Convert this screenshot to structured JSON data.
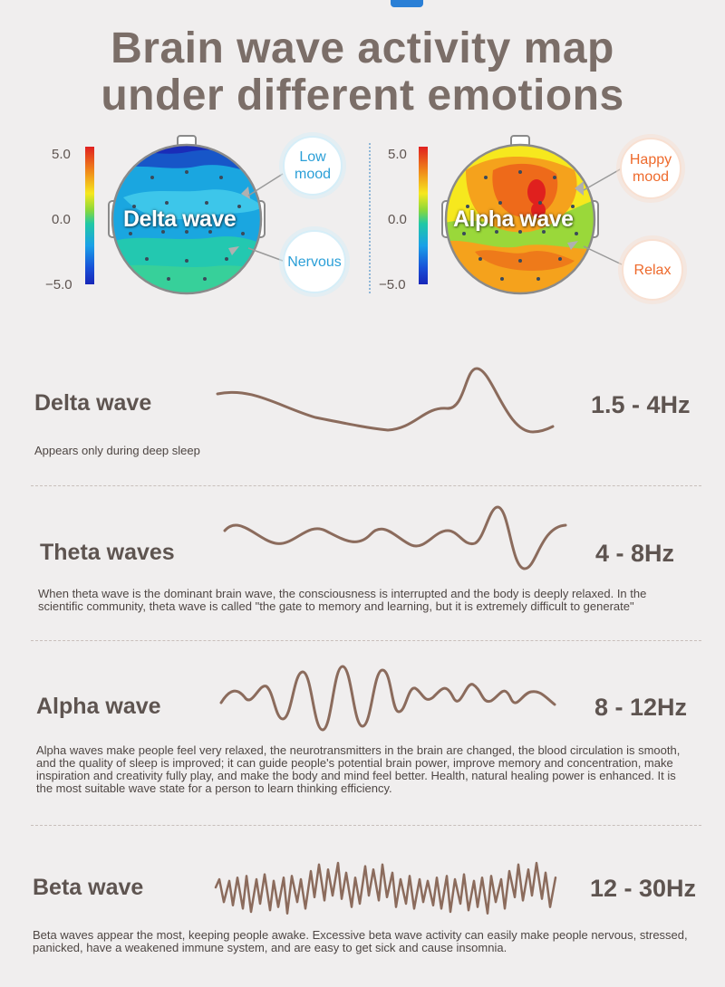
{
  "title": {
    "line1": "Brain wave activity map",
    "line2": "under different emotions"
  },
  "maps": [
    {
      "name": "Delta wave",
      "scale": [
        "5.0",
        "0.0",
        "−5.0"
      ],
      "labels": [
        "Low\nmood",
        "Nervous"
      ]
    },
    {
      "name": "Alpha wave",
      "scale": [
        "5.0",
        "0.0",
        "−5.0"
      ],
      "labels": [
        "Happy\nmood",
        "Relax"
      ]
    }
  ],
  "waves": [
    {
      "name": "Delta wave",
      "frequency": "1.5 - 4Hz",
      "description": "Appears only during deep sleep"
    },
    {
      "name": "Theta waves",
      "frequency": "4 - 8Hz",
      "description": "When theta wave is the dominant brain wave, the consciousness is interrupted and the body is deeply relaxed. In the scientific community, theta wave is called \"the gate to memory and learning, but it is extremely difficult to generate\""
    },
    {
      "name": "Alpha wave",
      "frequency": "8 - 12Hz",
      "description": "Alpha waves make people feel very relaxed, the neurotransmitters in the brain are changed, the blood circulation is smooth, and the quality of sleep is improved; it can guide people's potential brain power, improve memory and concentration, make inspiration and creativity fully play, and make the body and mind feel better. Health, natural healing power is enhanced. It is the most suitable wave state for a person to learn thinking efficiency."
    },
    {
      "name": "Beta wave",
      "frequency": "12 - 30Hz",
      "description": "Beta waves appear the most, keeping people awake. Excessive beta wave activity can easily make people nervous, stressed, panicked, have a weakened immune system, and are easy to get sick and cause insomnia."
    }
  ],
  "colors": {
    "wave_stroke": "#8b6b5c",
    "title": "#7b6e68",
    "accent_blue": "#2b9fd7",
    "accent_orange": "#ee6a2c"
  }
}
